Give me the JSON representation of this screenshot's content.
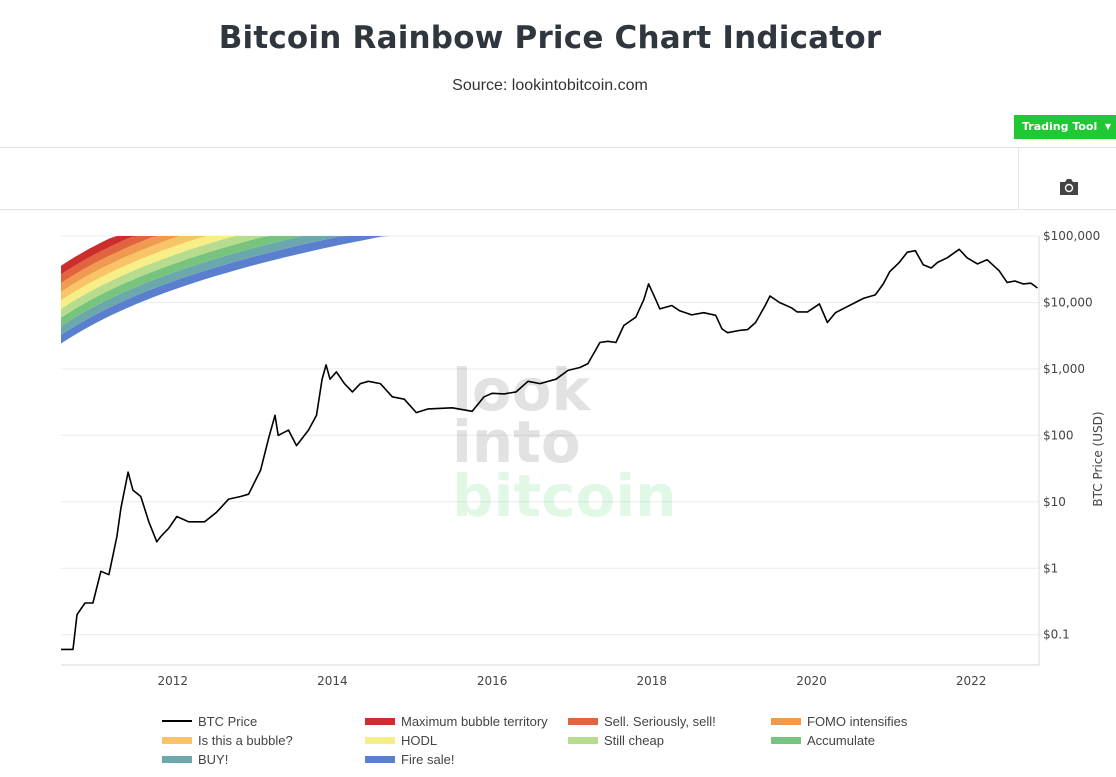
{
  "header": {
    "title": "Bitcoin Rainbow Price Chart Indicator",
    "subtitle": "Source: lookintobitcoin.com"
  },
  "toolbar": {
    "trading_tool_label": "Trading Tool",
    "camera_icon": "camera-icon"
  },
  "watermark": [
    "look",
    "into",
    "bitcoin"
  ],
  "chart_data": {
    "type": "line",
    "title": "Bitcoin Rainbow Price Chart Indicator",
    "xlabel": "",
    "ylabel": "BTC Price (USD)",
    "yscale": "log",
    "xlim": [
      2010.6,
      2022.85
    ],
    "ylim": [
      0.035,
      100000
    ],
    "grid": true,
    "legend_position": "bottom",
    "x_ticks": [
      "2012",
      "2014",
      "2016",
      "2018",
      "2020",
      "2022"
    ],
    "y_ticks": [
      "$100,000",
      "$10,000",
      "$1,000",
      "$100",
      "$10",
      "$1",
      "$0.1"
    ],
    "bands": [
      {
        "name": "Fire sale!",
        "color": "#5b7fcf"
      },
      {
        "name": "BUY!",
        "color": "#6aa8ac"
      },
      {
        "name": "Accumulate",
        "color": "#78c47f"
      },
      {
        "name": "Still cheap",
        "color": "#b8dc8e"
      },
      {
        "name": "HODL",
        "color": "#f7ee88"
      },
      {
        "name": "Is this a bubble?",
        "color": "#f9c368"
      },
      {
        "name": "FOMO intensifies",
        "color": "#ef9a4f"
      },
      {
        "name": "Sell. Seriously, sell!",
        "color": "#e2643f"
      },
      {
        "name": "Maximum bubble territory",
        "color": "#cc2e2e"
      }
    ],
    "series": [
      {
        "name": "BTC Price",
        "color": "#000000",
        "points": [
          [
            2010.6,
            0.06
          ],
          [
            2010.75,
            0.06
          ],
          [
            2010.8,
            0.2
          ],
          [
            2010.9,
            0.3
          ],
          [
            2011.0,
            0.3
          ],
          [
            2011.1,
            0.9
          ],
          [
            2011.2,
            0.8
          ],
          [
            2011.3,
            3
          ],
          [
            2011.35,
            8
          ],
          [
            2011.44,
            28
          ],
          [
            2011.5,
            15
          ],
          [
            2011.6,
            12
          ],
          [
            2011.7,
            5
          ],
          [
            2011.8,
            2.5
          ],
          [
            2011.85,
            3
          ],
          [
            2011.95,
            4
          ],
          [
            2012.05,
            6
          ],
          [
            2012.2,
            5
          ],
          [
            2012.4,
            5
          ],
          [
            2012.55,
            7
          ],
          [
            2012.7,
            11
          ],
          [
            2012.85,
            12
          ],
          [
            2012.95,
            13
          ],
          [
            2013.1,
            30
          ],
          [
            2013.2,
            90
          ],
          [
            2013.28,
            200
          ],
          [
            2013.32,
            100
          ],
          [
            2013.45,
            120
          ],
          [
            2013.55,
            70
          ],
          [
            2013.7,
            120
          ],
          [
            2013.8,
            200
          ],
          [
            2013.87,
            700
          ],
          [
            2013.92,
            1150
          ],
          [
            2013.97,
            700
          ],
          [
            2014.05,
            900
          ],
          [
            2014.15,
            600
          ],
          [
            2014.25,
            450
          ],
          [
            2014.35,
            600
          ],
          [
            2014.45,
            650
          ],
          [
            2014.6,
            600
          ],
          [
            2014.75,
            380
          ],
          [
            2014.9,
            350
          ],
          [
            2015.05,
            220
          ],
          [
            2015.2,
            250
          ],
          [
            2015.5,
            260
          ],
          [
            2015.75,
            230
          ],
          [
            2015.9,
            380
          ],
          [
            2016.0,
            430
          ],
          [
            2016.15,
            420
          ],
          [
            2016.3,
            450
          ],
          [
            2016.45,
            650
          ],
          [
            2016.6,
            600
          ],
          [
            2016.8,
            700
          ],
          [
            2016.95,
            950
          ],
          [
            2017.1,
            1050
          ],
          [
            2017.2,
            1200
          ],
          [
            2017.35,
            2500
          ],
          [
            2017.45,
            2600
          ],
          [
            2017.55,
            2500
          ],
          [
            2017.65,
            4500
          ],
          [
            2017.8,
            6000
          ],
          [
            2017.9,
            11000
          ],
          [
            2017.96,
            19000
          ],
          [
            2018.05,
            11000
          ],
          [
            2018.1,
            8000
          ],
          [
            2018.25,
            9000
          ],
          [
            2018.35,
            7500
          ],
          [
            2018.5,
            6500
          ],
          [
            2018.65,
            7000
          ],
          [
            2018.8,
            6400
          ],
          [
            2018.88,
            4000
          ],
          [
            2018.95,
            3500
          ],
          [
            2019.1,
            3800
          ],
          [
            2019.2,
            3900
          ],
          [
            2019.3,
            5000
          ],
          [
            2019.42,
            9000
          ],
          [
            2019.48,
            12500
          ],
          [
            2019.6,
            10000
          ],
          [
            2019.75,
            8300
          ],
          [
            2019.82,
            7200
          ],
          [
            2019.95,
            7200
          ],
          [
            2020.1,
            9500
          ],
          [
            2020.2,
            5000
          ],
          [
            2020.3,
            7000
          ],
          [
            2020.5,
            9300
          ],
          [
            2020.65,
            11500
          ],
          [
            2020.8,
            13000
          ],
          [
            2020.9,
            19000
          ],
          [
            2020.98,
            29000
          ],
          [
            2021.1,
            40000
          ],
          [
            2021.2,
            57000
          ],
          [
            2021.3,
            60000
          ],
          [
            2021.4,
            37000
          ],
          [
            2021.5,
            33000
          ],
          [
            2021.58,
            40000
          ],
          [
            2021.7,
            47000
          ],
          [
            2021.85,
            63000
          ],
          [
            2021.95,
            47000
          ],
          [
            2022.08,
            38000
          ],
          [
            2022.2,
            44000
          ],
          [
            2022.35,
            30000
          ],
          [
            2022.45,
            20000
          ],
          [
            2022.55,
            21000
          ],
          [
            2022.65,
            19000
          ],
          [
            2022.75,
            19500
          ],
          [
            2022.83,
            16500
          ]
        ]
      }
    ]
  },
  "legend": {
    "items": [
      {
        "label": "BTC Price",
        "color": "#000000",
        "kind": "line"
      },
      {
        "label": "Maximum bubble territory",
        "color": "#cc2e2e",
        "kind": "band"
      },
      {
        "label": "Sell. Seriously, sell!",
        "color": "#e2643f",
        "kind": "band"
      },
      {
        "label": "FOMO intensifies",
        "color": "#ef9a4f",
        "kind": "band"
      },
      {
        "label": "Is this a bubble?",
        "color": "#f9c368",
        "kind": "band"
      },
      {
        "label": "HODL",
        "color": "#f7ee88",
        "kind": "band"
      },
      {
        "label": "Still cheap",
        "color": "#b8dc8e",
        "kind": "band"
      },
      {
        "label": "Accumulate",
        "color": "#78c47f",
        "kind": "band"
      },
      {
        "label": "BUY!",
        "color": "#6aa8ac",
        "kind": "band"
      },
      {
        "label": "Fire sale!",
        "color": "#5b7fcf",
        "kind": "band"
      }
    ]
  }
}
